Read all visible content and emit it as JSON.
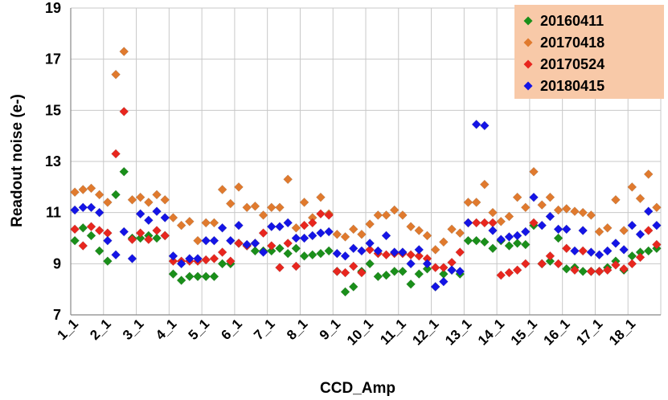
{
  "chart_data": {
    "type": "scatter",
    "title": "",
    "xlabel": "CCD_Amp",
    "ylabel": "Readout noise (e-)",
    "ylim": [
      7,
      19
    ],
    "yticks": [
      7,
      9,
      11,
      13,
      15,
      17,
      19
    ],
    "grid": true,
    "legend_position": "top-right",
    "categories": [
      "1_1",
      "1_2",
      "1_3",
      "1_4",
      "2_1",
      "2_2",
      "2_3",
      "2_4",
      "3_1",
      "3_2",
      "3_3",
      "3_4",
      "4_1",
      "4_2",
      "4_3",
      "4_4",
      "5_1",
      "5_2",
      "5_3",
      "5_4",
      "6_1",
      "6_2",
      "6_3",
      "6_4",
      "7_1",
      "7_2",
      "7_3",
      "7_4",
      "8_1",
      "8_2",
      "8_3",
      "8_4",
      "9_1",
      "9_2",
      "9_3",
      "9_4",
      "10_1",
      "10_2",
      "10_3",
      "10_4",
      "11_1",
      "11_2",
      "11_3",
      "11_4",
      "12_1",
      "12_2",
      "12_3",
      "12_4",
      "13_1",
      "13_2",
      "13_3",
      "13_4",
      "14_1",
      "14_2",
      "14_3",
      "14_4",
      "15_1",
      "15_2",
      "15_3",
      "15_4",
      "16_1",
      "16_2",
      "16_3",
      "16_4",
      "17_1",
      "17_2",
      "17_3",
      "17_4",
      "18_1",
      "18_2",
      "18_3",
      "18_4"
    ],
    "xtick_labels": [
      "1_1",
      "2_1",
      "3_1",
      "4_1",
      "5_1",
      "6_1",
      "7_1",
      "8_1",
      "9_1",
      "10_1",
      "11_1",
      "12_1",
      "13_1",
      "14_1",
      "15_1",
      "16_1",
      "17_1",
      "18_1"
    ],
    "series": [
      {
        "name": "20160411",
        "color": "#1a8f1a",
        "values": [
          9.9,
          10.4,
          10.1,
          9.5,
          9.1,
          11.7,
          12.6,
          10.0,
          10.0,
          10.1,
          10.0,
          10.1,
          8.6,
          8.35,
          8.5,
          8.5,
          8.5,
          8.5,
          9.0,
          9.0,
          9.8,
          9.7,
          9.5,
          9.5,
          9.5,
          9.6,
          9.4,
          9.6,
          9.3,
          9.35,
          9.4,
          9.5,
          8.7,
          7.9,
          8.1,
          8.7,
          9.0,
          8.5,
          8.55,
          8.7,
          8.7,
          8.2,
          8.6,
          8.8,
          8.1,
          8.6,
          8.75,
          8.6,
          9.9,
          9.9,
          9.85,
          9.6,
          9.9,
          9.7,
          9.8,
          9.75,
          10.5,
          9.0,
          9.1,
          10.0,
          8.8,
          8.85,
          8.7,
          8.7,
          8.7,
          8.85,
          9.1,
          8.75,
          9.3,
          9.45,
          9.5,
          9.6
        ]
      },
      {
        "name": "20170418",
        "color": "#e07a2e",
        "values": [
          11.8,
          11.9,
          11.95,
          11.7,
          11.4,
          16.4,
          17.3,
          11.5,
          11.6,
          11.4,
          11.7,
          11.5,
          10.8,
          10.5,
          10.65,
          9.9,
          10.6,
          10.6,
          11.9,
          11.35,
          12.0,
          11.2,
          11.25,
          10.9,
          11.2,
          11.2,
          12.3,
          10.4,
          11.4,
          10.8,
          11.6,
          10.95,
          10.15,
          10.05,
          10.35,
          10.15,
          10.55,
          10.9,
          10.9,
          11.1,
          10.9,
          10.45,
          10.3,
          10.1,
          9.55,
          9.85,
          10.35,
          10.2,
          11.4,
          11.4,
          12.1,
          11.0,
          10.65,
          10.85,
          11.6,
          11.2,
          12.6,
          11.3,
          11.6,
          11.1,
          11.15,
          11.05,
          11.0,
          10.9,
          10.25,
          10.4,
          11.5,
          10.3,
          12.0,
          11.55,
          12.5,
          11.2
        ]
      },
      {
        "name": "20170524",
        "color": "#e8261e",
        "values": [
          10.35,
          9.7,
          10.45,
          10.3,
          10.2,
          13.3,
          14.95,
          9.95,
          10.2,
          9.95,
          10.3,
          10.1,
          9.1,
          9.1,
          9.1,
          9.1,
          9.15,
          9.2,
          9.45,
          9.1,
          9.8,
          9.7,
          9.8,
          10.2,
          9.7,
          8.85,
          9.8,
          8.9,
          10.5,
          10.6,
          10.95,
          10.9,
          8.7,
          8.65,
          8.9,
          8.65,
          9.55,
          9.4,
          9.35,
          9.4,
          9.4,
          9.35,
          9.3,
          9.2,
          8.85,
          8.85,
          9.05,
          9.45,
          10.6,
          10.6,
          10.6,
          10.6,
          8.55,
          8.65,
          8.75,
          9.0,
          10.6,
          9.0,
          9.3,
          9.0,
          9.6,
          8.75,
          9.5,
          8.7,
          8.7,
          8.75,
          8.95,
          8.8,
          9.0,
          9.25,
          10.3,
          9.75
        ]
      },
      {
        "name": "20180415",
        "color": "#1414e6",
        "values": [
          11.1,
          11.2,
          11.2,
          11.0,
          9.9,
          9.35,
          10.25,
          9.2,
          10.95,
          10.7,
          11.05,
          10.8,
          9.3,
          9.0,
          9.2,
          9.2,
          9.9,
          9.9,
          10.4,
          9.9,
          10.5,
          9.75,
          9.8,
          9.45,
          10.45,
          10.45,
          10.6,
          10.0,
          10.0,
          10.1,
          10.2,
          10.25,
          9.4,
          9.3,
          9.6,
          9.5,
          9.8,
          9.5,
          10.1,
          9.45,
          9.45,
          9.0,
          9.55,
          9.0,
          8.1,
          8.3,
          8.75,
          8.7,
          10.6,
          14.45,
          14.4,
          10.3,
          9.95,
          10.05,
          10.1,
          10.25,
          11.6,
          10.5,
          10.85,
          10.35,
          10.35,
          9.5,
          10.3,
          9.45,
          9.35,
          9.5,
          9.8,
          9.55,
          10.5,
          10.15,
          11.05,
          10.5
        ]
      }
    ]
  }
}
